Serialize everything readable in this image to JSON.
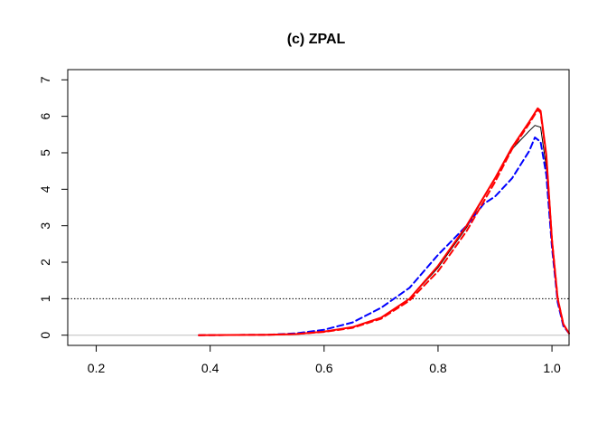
{
  "chart_data": {
    "type": "line",
    "title": "(c) ZPAL",
    "xlabel": "",
    "ylabel": "",
    "xlim": [
      0.15,
      1.03
    ],
    "ylim": [
      -0.28,
      7.28
    ],
    "xticks": [
      0.2,
      0.4,
      0.6,
      0.8,
      1.0
    ],
    "xtick_labels": [
      "0.2",
      "0.4",
      "0.6",
      "0.8",
      "1.0"
    ],
    "yticks": [
      0,
      1,
      2,
      3,
      4,
      5,
      6,
      7
    ],
    "ytick_labels": [
      "0",
      "1",
      "2",
      "3",
      "4",
      "5",
      "6",
      "7"
    ],
    "reference_lines": [
      {
        "y": 0,
        "color": "#bebebe",
        "style": "solid"
      },
      {
        "y": 1,
        "color": "#000000",
        "style": "dotted"
      }
    ],
    "series": [
      {
        "color": "#000000",
        "style": "solid",
        "width": 1,
        "x": [
          0.38,
          0.5,
          0.55,
          0.6,
          0.65,
          0.7,
          0.75,
          0.8,
          0.85,
          0.9,
          0.93,
          0.96,
          0.97,
          0.98,
          0.99,
          1.0,
          1.01,
          1.02,
          1.03
        ],
        "y": [
          0,
          0.01,
          0.03,
          0.1,
          0.22,
          0.48,
          1.0,
          1.85,
          2.95,
          4.3,
          5.1,
          5.6,
          5.75,
          5.7,
          4.6,
          2.5,
          1.0,
          0.3,
          0.05
        ]
      },
      {
        "color": "#0000ff",
        "style": "dashed",
        "width": 2,
        "x": [
          0.38,
          0.5,
          0.55,
          0.6,
          0.65,
          0.7,
          0.75,
          0.8,
          0.85,
          0.88,
          0.9,
          0.93,
          0.96,
          0.97,
          0.98,
          0.99,
          1.0,
          1.01,
          1.02,
          1.03
        ],
        "y": [
          0,
          0.01,
          0.05,
          0.15,
          0.35,
          0.75,
          1.3,
          2.2,
          3.0,
          3.6,
          3.8,
          4.3,
          5.05,
          5.42,
          5.3,
          4.4,
          2.4,
          0.9,
          0.25,
          0.05
        ]
      },
      {
        "color": "#ff0000",
        "style": "dashed",
        "width": 2,
        "x": [
          0.38,
          0.5,
          0.55,
          0.6,
          0.65,
          0.7,
          0.75,
          0.8,
          0.85,
          0.9,
          0.93,
          0.96,
          0.975,
          0.98,
          0.99,
          1.0,
          1.01,
          1.02,
          1.03
        ],
        "y": [
          0,
          0.01,
          0.03,
          0.09,
          0.2,
          0.45,
          0.95,
          1.75,
          2.85,
          4.2,
          5.1,
          5.8,
          6.18,
          6.1,
          4.9,
          2.6,
          1.0,
          0.3,
          0.05
        ]
      },
      {
        "color": "#ff0000",
        "style": "solid",
        "width": 2,
        "x": [
          0.38,
          0.5,
          0.55,
          0.6,
          0.65,
          0.7,
          0.75,
          0.8,
          0.85,
          0.9,
          0.93,
          0.96,
          0.975,
          0.98,
          0.99,
          1.0,
          1.01,
          1.02,
          1.03
        ],
        "y": [
          0,
          0.01,
          0.03,
          0.1,
          0.22,
          0.48,
          1.0,
          1.9,
          3.0,
          4.3,
          5.15,
          5.85,
          6.22,
          6.15,
          4.95,
          2.6,
          1.0,
          0.3,
          0.05
        ]
      }
    ]
  }
}
